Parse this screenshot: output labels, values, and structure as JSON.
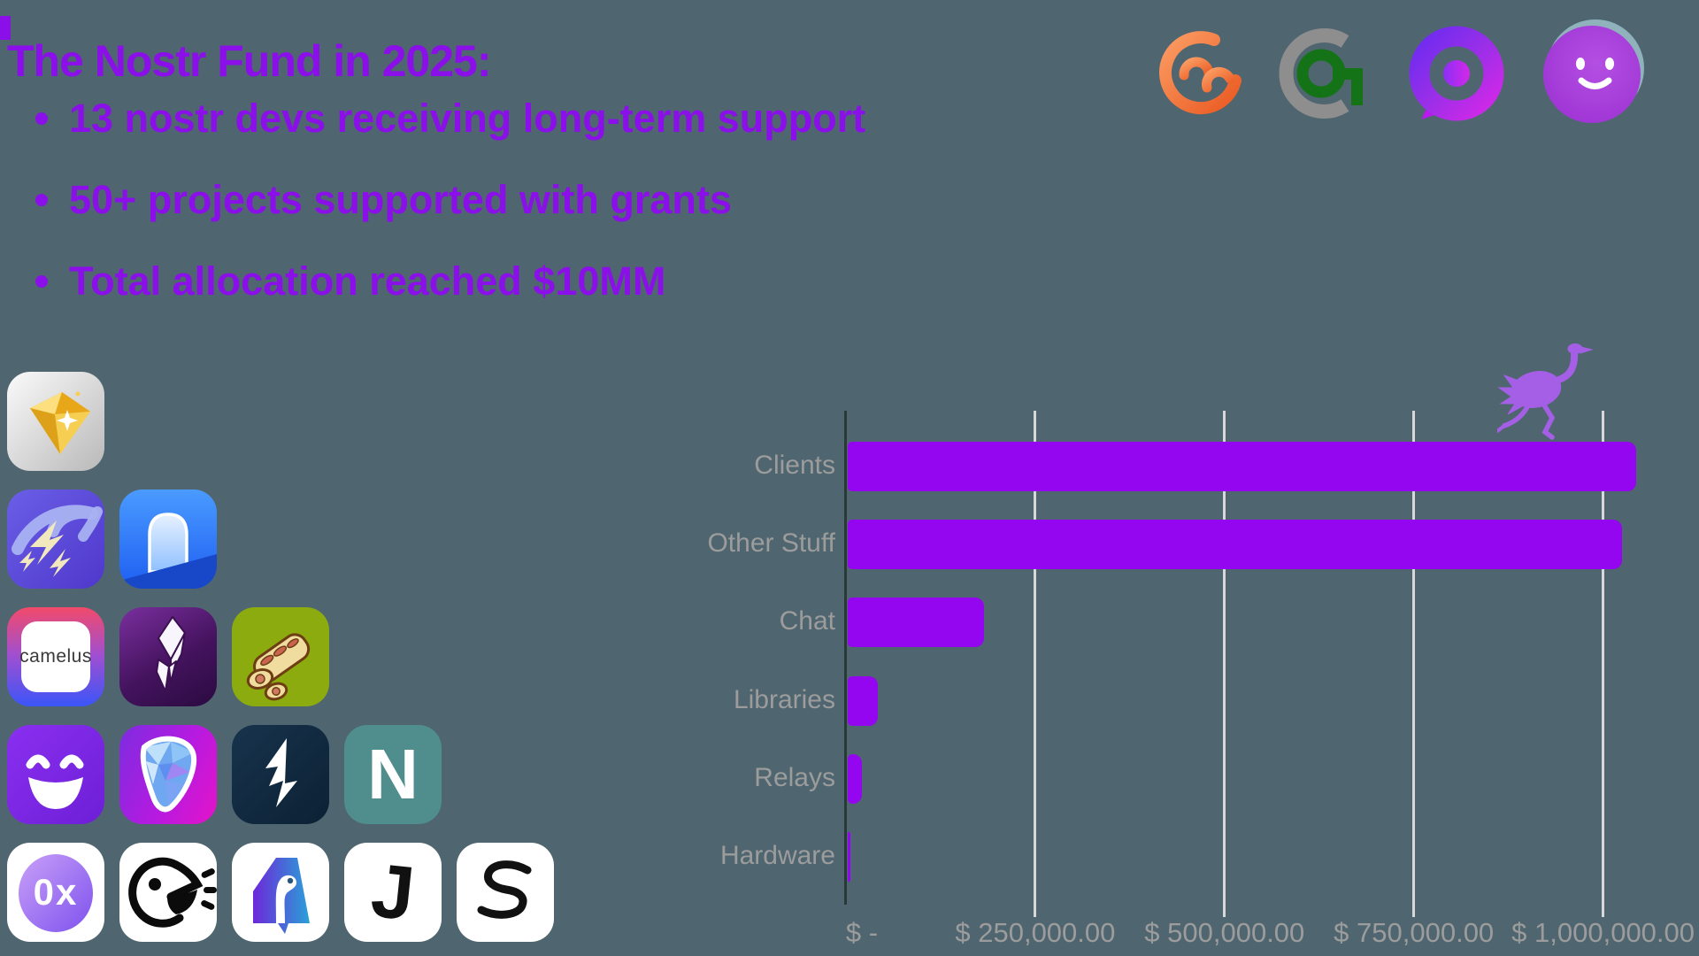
{
  "background_color": "#4f6670",
  "header": {
    "title": "The Nostr Fund in 2025:",
    "text_color": "#8a0fe8",
    "bullets": [
      "13 nostr devs receiving long-term support",
      "50+ projects supported with grants",
      "Total allocation reached $10MM"
    ]
  },
  "partner_logos": [
    {
      "name": "orange-arcs-logo",
      "color": "#ee6a33"
    },
    {
      "name": "gray-green-target-logo",
      "colors": [
        "#8e8e8e",
        "#147317"
      ]
    },
    {
      "name": "purple-ring-chat-logo",
      "colors": [
        "#8b2ff5",
        "#d428e8"
      ]
    },
    {
      "name": "purple-smiley-ball-logo",
      "colors": [
        "#a843dc",
        "#8fb2bc"
      ]
    }
  ],
  "app_icons": {
    "rows": [
      [
        {
          "name": "gold-gem-app-icon"
        }
      ],
      [
        {
          "name": "lightning-bolts-app-icon"
        },
        {
          "name": "blue-arch-app-icon"
        }
      ],
      [
        {
          "name": "camelus-app-icon",
          "label": "camelus"
        },
        {
          "name": "purple-crystal-app-icon"
        },
        {
          "name": "bread-roll-app-icon"
        }
      ],
      [
        {
          "name": "purple-smiley-app-icon"
        },
        {
          "name": "faceted-pick-app-icon"
        },
        {
          "name": "navy-lightning-app-icon"
        },
        {
          "name": "letter-n-app-icon",
          "label": "N"
        }
      ],
      [
        {
          "name": "zerox-chat-app-icon",
          "label": "0x"
        },
        {
          "name": "shouting-bird-app-icon"
        },
        {
          "name": "ostrich-letter-a-app-icon"
        },
        {
          "name": "letter-j-app-icon",
          "label": "J"
        },
        {
          "name": "angular-s-app-icon"
        }
      ]
    ]
  },
  "chart_data": {
    "type": "bar",
    "orientation": "horizontal",
    "title": "",
    "categories": [
      "Clients",
      "Other Stuff",
      "Chat",
      "Libraries",
      "Relays",
      "Hardware"
    ],
    "values": [
      1041000,
      1023000,
      180000,
      40000,
      19000,
      3000
    ],
    "x_tick_labels": [
      "$ -",
      "$ 250,000.00",
      "$ 500,000.00",
      "$ 750,000.00",
      "$ 1,000,000.00"
    ],
    "x_tick_values": [
      0,
      250000,
      500000,
      750000,
      1000000
    ],
    "xlim": [
      0,
      1127000
    ],
    "grid": true,
    "bar_color": "#9406ef",
    "label_color": "#9c9c9c",
    "gridline_color": "#d8d8d8",
    "axis_color": "#2b3838",
    "mascot": "running-ostrich",
    "mascot_color": "#a55fe6"
  }
}
